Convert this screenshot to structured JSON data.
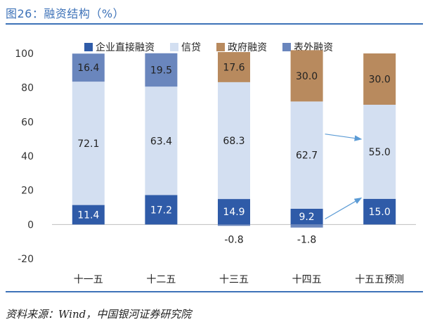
{
  "header": {
    "title": "图26：融资结构（%）"
  },
  "footer": {
    "source": "资料来源：Wind，中国银河证券研究院"
  },
  "chart_data": {
    "type": "bar",
    "stacked": true,
    "categories": [
      "十一五",
      "十二五",
      "十三五",
      "十四五",
      "十五五预测"
    ],
    "series": [
      {
        "name": "企业直接融资",
        "color": "#2f5ba8",
        "values": [
          11.4,
          17.2,
          14.9,
          9.2,
          15.0
        ],
        "labels": [
          "11.4",
          "17.2",
          "14.9",
          "9.2",
          "15.0"
        ]
      },
      {
        "name": "信贷",
        "color": "#d3dff1",
        "values": [
          72.1,
          63.4,
          68.3,
          62.7,
          55.0
        ],
        "labels": [
          "72.1",
          "63.4",
          "68.3",
          "62.7",
          "55.0"
        ]
      },
      {
        "name": "政府融资",
        "color": "#b88a5e",
        "values": [
          0,
          0,
          17.6,
          30.0,
          30.0
        ],
        "labels": [
          "",
          "",
          "17.6",
          "30.0",
          "30.0"
        ]
      },
      {
        "name": "表外融资",
        "color": "#6a86bd",
        "values": [
          16.4,
          19.5,
          -0.8,
          -1.8,
          0
        ],
        "labels": [
          "16.4",
          "19.5",
          "-0.8",
          "-1.8",
          ""
        ]
      }
    ],
    "ylim": [
      -20,
      100
    ],
    "yticks": [
      "100",
      "80",
      "60",
      "40",
      "20",
      "0",
      "-20"
    ],
    "ytick_values": [
      100,
      80,
      60,
      40,
      20,
      0,
      -20
    ],
    "legend_position": "top",
    "grid": false,
    "annotations": [
      "arrow from 十四五 信贷 to 十五五预测 信贷",
      "arrow from 十四五 企业直接融资 to 十五五预测 企业直接融资"
    ]
  }
}
